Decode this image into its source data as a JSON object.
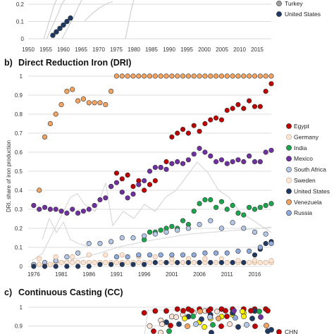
{
  "chart_data": [
    {
      "panel": "a",
      "type": "scatter",
      "title": "",
      "xlim": [
        1950,
        2019
      ],
      "ylim": [
        0,
        1
      ],
      "x_ticks": [
        "1950",
        "1955",
        "1960",
        "1965",
        "1970",
        "1975",
        "1980",
        "1985",
        "1990",
        "1995",
        "2000",
        "2005",
        "2010",
        "2015"
      ],
      "y_ticks": [
        "0",
        "0.1",
        "0.2"
      ],
      "grid": true,
      "legend": [
        {
          "name": "Turkey",
          "color": "#9e9e9e"
        },
        {
          "name": "United States",
          "color": "#1f3864"
        }
      ],
      "series": [
        {
          "name": "United States",
          "color": "#1f3864",
          "x": [
            1957,
            1958,
            1959,
            1960,
            1961,
            1962
          ],
          "y": [
            0.02,
            0.04,
            0.06,
            0.08,
            0.1,
            0.12
          ]
        },
        {
          "name": "Yellow series",
          "color": "#f7f000",
          "x": [
            1960,
            1962
          ],
          "y": [
            0.45,
            0.5
          ]
        },
        {
          "name": "Green series",
          "color": "#1aa64b",
          "x": [
            1966,
            1967,
            1968
          ],
          "y": [
            0.45,
            0.48,
            0.52
          ]
        },
        {
          "name": "Purple series",
          "color": "#7030a0",
          "x": [
            1971,
            1972,
            1973
          ],
          "y": [
            0.3,
            0.36,
            0.42
          ]
        }
      ]
    },
    {
      "panel": "b",
      "type": "scatter",
      "title": "Direct Reduction Iron (DRI)",
      "ylabel": "DRI, share of iron production",
      "xlim": [
        1975,
        2019
      ],
      "ylim": [
        0,
        1
      ],
      "x_ticks": [
        "1976",
        "1981",
        "1986",
        "1991",
        "1996",
        "2001",
        "2006",
        "2011",
        "2016"
      ],
      "y_ticks": [
        "0",
        "0.1",
        "0.2",
        "0.3",
        "0.4",
        "0.5",
        "0.6",
        "0.7",
        "0.8",
        "0.9",
        "1"
      ],
      "grid": true,
      "legend_position": "right",
      "series": [
        {
          "name": "Egypt",
          "color": "#c00000",
          "x": [
            1990,
            1991,
            1992,
            1993,
            1994,
            1995,
            1996,
            1997,
            1998,
            1999,
            2000,
            2001,
            2002,
            2003,
            2004,
            2005,
            2006,
            2007,
            2008,
            2009,
            2010,
            2011,
            2012,
            2013,
            2014,
            2015,
            2016,
            2017,
            2018,
            2019
          ],
          "y": [
            0.42,
            0.49,
            0.46,
            0.48,
            0.42,
            0.45,
            0.4,
            0.43,
            0.45,
            0.52,
            0.55,
            0.68,
            0.7,
            0.72,
            0.7,
            0.74,
            0.71,
            0.75,
            0.77,
            0.78,
            0.77,
            0.82,
            0.83,
            0.85,
            0.83,
            0.87,
            0.84,
            0.84,
            0.92,
            0.96
          ]
        },
        {
          "name": "Germany",
          "color": "#fbe5d6",
          "x": [
            1976,
            1977,
            1978,
            1979,
            1980,
            1981,
            1982,
            1983,
            1984,
            1985,
            1986,
            1987,
            1988,
            1989,
            1990,
            1991,
            1992,
            1993,
            1994,
            1995,
            1996,
            1997,
            1998,
            1999,
            2000,
            2001,
            2002,
            2003,
            2004,
            2005,
            2006,
            2007,
            2008,
            2009,
            2010,
            2011,
            2012,
            2013,
            2014,
            2015,
            2016,
            2017,
            2018,
            2019
          ],
          "y": [
            0.01,
            0.01,
            0.01,
            0.01,
            0.02,
            0.02,
            0.02,
            0.02,
            0.02,
            0.02,
            0.02,
            0.02,
            0.02,
            0.02,
            0.02,
            0.02,
            0.02,
            0.02,
            0.02,
            0.02,
            0.02,
            0.02,
            0.02,
            0.02,
            0.02,
            0.02,
            0.02,
            0.02,
            0.02,
            0.02,
            0.02,
            0.02,
            0.02,
            0.02,
            0.02,
            0.02,
            0.02,
            0.02,
            0.02,
            0.02,
            0.02,
            0.02,
            0.02,
            0.02
          ]
        },
        {
          "name": "India",
          "color": "#1aa64b",
          "x": [
            1996,
            1997,
            1998,
            1999,
            2000,
            2001,
            2002,
            2003,
            2004,
            2005,
            2006,
            2007,
            2008,
            2009,
            2010,
            2011,
            2012,
            2013,
            2014,
            2015,
            2016,
            2017,
            2018,
            2019
          ],
          "y": [
            0.14,
            0.18,
            0.18,
            0.19,
            0.2,
            0.21,
            0.2,
            0.24,
            0.22,
            0.29,
            0.33,
            0.35,
            0.35,
            0.31,
            0.34,
            0.3,
            0.32,
            0.28,
            0.27,
            0.31,
            0.3,
            0.31,
            0.32,
            0.33
          ]
        },
        {
          "name": "Mexico",
          "color": "#7030a0",
          "x": [
            1976,
            1977,
            1978,
            1979,
            1980,
            1981,
            1982,
            1983,
            1984,
            1985,
            1986,
            1987,
            1988,
            1989,
            1990,
            1991,
            1992,
            1993,
            1994,
            1995,
            1996,
            1997,
            1998,
            1999,
            2000,
            2001,
            2002,
            2003,
            2004,
            2005,
            2006,
            2007,
            2008,
            2009,
            2010,
            2011,
            2012,
            2013,
            2014,
            2015,
            2016,
            2017,
            2018,
            2019
          ],
          "y": [
            0.32,
            0.3,
            0.31,
            0.3,
            0.3,
            0.29,
            0.28,
            0.3,
            0.28,
            0.29,
            0.3,
            0.32,
            0.35,
            0.36,
            0.42,
            0.44,
            0.39,
            0.36,
            0.38,
            0.43,
            0.45,
            0.5,
            0.52,
            0.52,
            0.51,
            0.54,
            0.55,
            0.54,
            0.56,
            0.59,
            0.62,
            0.6,
            0.58,
            0.55,
            0.56,
            0.54,
            0.55,
            0.56,
            0.55,
            0.58,
            0.55,
            0.55,
            0.6,
            0.61
          ]
        },
        {
          "name": "South Africa",
          "color": "#b4c7e7",
          "x": [
            1976,
            1978,
            1980,
            1982,
            1984,
            1986,
            1988,
            1990,
            1992,
            1994,
            1996,
            1998,
            2000,
            2002,
            2004,
            2006,
            2008,
            2010,
            2012,
            2014,
            2016,
            2018
          ],
          "y": [
            0.01,
            0.02,
            0.03,
            0.05,
            0.07,
            0.12,
            0.12,
            0.13,
            0.15,
            0.15,
            0.16,
            0.17,
            0.18,
            0.19,
            0.2,
            0.22,
            0.24,
            0.2,
            0.23,
            0.2,
            0.18,
            0.17
          ]
        },
        {
          "name": "Sweden",
          "color": "#fbe5d6",
          "x": [
            1977,
            1980,
            1983,
            1986,
            1989,
            1992,
            1995,
            1998,
            2001,
            2004,
            2007,
            2010,
            2013,
            2016,
            2019
          ],
          "y": [
            0.04,
            0.05,
            0.05,
            0.06,
            0.06,
            0.06,
            0.05,
            0.05,
            0.04,
            0.04,
            0.04,
            0.04,
            0.03,
            0.03,
            0.03
          ]
        },
        {
          "name": "United States",
          "color": "#1f3864",
          "x": [
            1976,
            1978,
            1980,
            1982,
            1984,
            1986,
            1988,
            1990,
            1992,
            1994,
            1996,
            1998,
            2000,
            2002,
            2004,
            2006,
            2008,
            2010,
            2012,
            2014,
            2016,
            2017,
            2018,
            2019
          ],
          "y": [
            0.0,
            0.0,
            0.0,
            0.0,
            0.0,
            0.0,
            0.01,
            0.01,
            0.01,
            0.01,
            0.01,
            0.02,
            0.02,
            0.02,
            0.02,
            0.02,
            0.02,
            0.02,
            0.02,
            0.02,
            0.06,
            0.09,
            0.12,
            0.13
          ]
        },
        {
          "name": "Venezuela",
          "color": "#f4a460",
          "x": [
            1977,
            1978,
            1979,
            1980,
            1981,
            1982,
            1983,
            1984,
            1985,
            1986,
            1987,
            1988,
            1989,
            1990,
            1991,
            1992,
            1993,
            1994,
            1995,
            1996,
            1997,
            1998,
            1999,
            2000,
            2001,
            2002,
            2003,
            2004,
            2005,
            2006,
            2007,
            2008,
            2009,
            2010,
            2011,
            2012,
            2013,
            2014,
            2015,
            2016,
            2017,
            2018,
            2019
          ],
          "y": [
            0.4,
            0.68,
            0.75,
            0.8,
            0.85,
            0.92,
            0.93,
            0.87,
            0.88,
            0.86,
            0.86,
            0.86,
            0.85,
            0.92,
            1,
            1,
            1,
            1,
            1,
            1,
            1,
            1,
            1,
            1,
            1,
            1,
            1,
            1,
            1,
            1,
            1,
            1,
            1,
            1,
            1,
            1,
            1,
            1,
            1,
            1,
            1,
            1,
            1
          ]
        },
        {
          "name": "Russia",
          "color": "#8faadc",
          "x": [
            1991,
            1993,
            1995,
            1997,
            1999,
            2001,
            2003,
            2005,
            2007,
            2009,
            2011,
            2013,
            2015,
            2017,
            2019
          ],
          "y": [
            0.05,
            0.05,
            0.06,
            0.06,
            0.06,
            0.06,
            0.06,
            0.06,
            0.07,
            0.07,
            0.07,
            0.08,
            0.08,
            0.1,
            0.12
          ]
        }
      ]
    },
    {
      "panel": "c",
      "type": "scatter",
      "title": "Continuous Casting (CC)",
      "xlim": [
        1975,
        2019
      ],
      "ylim": [
        0.85,
        1
      ],
      "y_ticks": [
        "1",
        "0.9"
      ],
      "grid": true,
      "series": [
        {
          "name": "cluster-red",
          "color": "#c00000",
          "x": [
            1996,
            1998,
            2000,
            2002,
            2004,
            2006,
            2008,
            2010,
            2012,
            2014,
            2016,
            2018
          ],
          "y": [
            0.97,
            0.98,
            0.98,
            0.99,
            0.99,
            0.99,
            0.99,
            0.99,
            0.99,
            0.99,
            0.99,
            0.99
          ]
        },
        {
          "name": "cluster-yellow",
          "color": "#f7f000",
          "x": [
            2006,
            2008,
            2010,
            2012,
            2014
          ],
          "y": [
            0.92,
            0.94,
            0.95,
            0.96,
            0.97
          ]
        },
        {
          "name": "cluster-blue",
          "color": "#1f3864",
          "x": [
            2000,
            2004,
            2008,
            2012,
            2016,
            2019
          ],
          "y": [
            0.92,
            0.95,
            0.96,
            0.97,
            0.98,
            0.88
          ]
        },
        {
          "name": "cluster-light",
          "color": "#fbe5d6",
          "x": [
            1997,
            1999,
            2001,
            2003,
            2005,
            2007
          ],
          "y": [
            0.9,
            0.93,
            0.95,
            0.96,
            0.97,
            0.98
          ]
        }
      ]
    }
  ],
  "panels": {
    "b": {
      "letter": "b)",
      "title": "Direct Reduction Iron (DRI)"
    },
    "c": {
      "letter": "c)",
      "title": "Continuous Casting (CC)"
    }
  },
  "legend_a": [
    "Turkey",
    "United States"
  ],
  "legend_b": [
    "Egypt",
    "Germany",
    "India",
    "Mexico",
    "South Africa",
    "Sweden",
    "United States",
    "Venezuela",
    "Russia"
  ],
  "legend_c": [
    "CHN"
  ],
  "ylabel_b": "DRI, share of iron production"
}
